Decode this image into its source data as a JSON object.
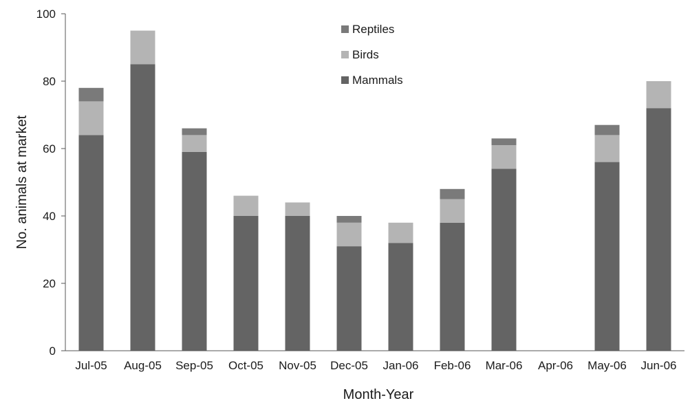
{
  "chart_data": {
    "type": "bar",
    "stacked": true,
    "title": "",
    "xlabel": "Month-Year",
    "ylabel": "No. animals at market",
    "ylim": [
      0,
      100
    ],
    "yticks": [
      "0",
      "20",
      "40",
      "60",
      "80",
      "100"
    ],
    "grid": false,
    "legend_position": "top-center",
    "legend_order": [
      "Reptiles",
      "Birds",
      "Mammals"
    ],
    "categories": [
      "Jul-05",
      "Aug-05",
      "Sep-05",
      "Oct-05",
      "Nov-05",
      "Dec-05",
      "Jan-06",
      "Feb-06",
      "Mar-06",
      "Apr-06",
      "May-06",
      "Jun-06"
    ],
    "series": [
      {
        "name": "Mammals",
        "color": "#646464",
        "values": [
          64,
          85,
          59,
          40,
          40,
          31,
          32,
          38,
          54,
          0,
          56,
          72
        ]
      },
      {
        "name": "Birds",
        "color": "#b4b4b4",
        "values": [
          10,
          10,
          5,
          6,
          4,
          7,
          6,
          7,
          7,
          0,
          8,
          8
        ]
      },
      {
        "name": "Reptiles",
        "color": "#7a7a7a",
        "values": [
          4,
          0,
          2,
          0,
          0,
          2,
          0,
          3,
          2,
          0,
          3,
          0
        ]
      }
    ]
  }
}
